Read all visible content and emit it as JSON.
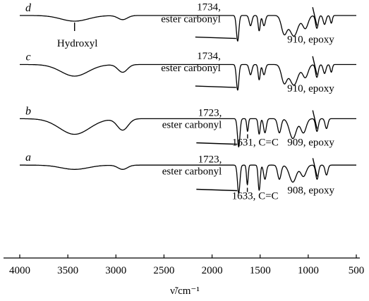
{
  "chart_data": {
    "type": "line",
    "xlabel": "ν̃/cm⁻¹",
    "x_axis": {
      "min": 500,
      "max": 4000,
      "reversed": true,
      "ticks": [
        4000,
        3500,
        3000,
        2500,
        2000,
        1500,
        1000,
        500
      ]
    },
    "y_axis": {
      "visible": false
    },
    "grid": false,
    "series": [
      {
        "name": "d",
        "baseline": 0.94,
        "depth": 0.1,
        "bands": [
          {
            "x": 3430,
            "w": 200,
            "h": 0.22
          },
          {
            "x": 2930,
            "w": 70,
            "h": 0.16
          },
          {
            "x": 1734,
            "w": 18,
            "h": 1.0
          },
          {
            "x": 1600,
            "w": 20,
            "h": 0.4
          },
          {
            "x": 1510,
            "w": 15,
            "h": 0.6
          },
          {
            "x": 1460,
            "w": 20,
            "h": 0.4
          },
          {
            "x": 1250,
            "w": 40,
            "h": 0.7
          },
          {
            "x": 1150,
            "w": 60,
            "h": 0.8
          },
          {
            "x": 1030,
            "w": 40,
            "h": 0.5
          },
          {
            "x": 910,
            "w": 20,
            "h": 0.5
          },
          {
            "x": 830,
            "w": 20,
            "h": 0.35
          },
          {
            "x": 760,
            "w": 15,
            "h": 0.3
          }
        ]
      },
      {
        "name": "c",
        "baseline": 0.75,
        "depth": 0.1,
        "bands": [
          {
            "x": 3430,
            "w": 200,
            "h": 0.45
          },
          {
            "x": 2930,
            "w": 70,
            "h": 0.3
          },
          {
            "x": 1734,
            "w": 18,
            "h": 1.0
          },
          {
            "x": 1600,
            "w": 20,
            "h": 0.4
          },
          {
            "x": 1510,
            "w": 15,
            "h": 0.6
          },
          {
            "x": 1460,
            "w": 20,
            "h": 0.4
          },
          {
            "x": 1250,
            "w": 40,
            "h": 0.7
          },
          {
            "x": 1150,
            "w": 60,
            "h": 0.8
          },
          {
            "x": 1030,
            "w": 40,
            "h": 0.5
          },
          {
            "x": 910,
            "w": 20,
            "h": 0.5
          },
          {
            "x": 830,
            "w": 20,
            "h": 0.35
          },
          {
            "x": 760,
            "w": 15,
            "h": 0.3
          }
        ]
      },
      {
        "name": "b",
        "baseline": 0.54,
        "depth": 0.11,
        "bands": [
          {
            "x": 3430,
            "w": 220,
            "h": 0.55
          },
          {
            "x": 2930,
            "w": 80,
            "h": 0.4
          },
          {
            "x": 1723,
            "w": 18,
            "h": 1.0
          },
          {
            "x": 1631,
            "w": 12,
            "h": 0.45
          },
          {
            "x": 1510,
            "w": 15,
            "h": 0.55
          },
          {
            "x": 1450,
            "w": 20,
            "h": 0.5
          },
          {
            "x": 1300,
            "w": 25,
            "h": 0.5
          },
          {
            "x": 1160,
            "w": 50,
            "h": 0.7
          },
          {
            "x": 1050,
            "w": 40,
            "h": 0.5
          },
          {
            "x": 909,
            "w": 20,
            "h": 0.45
          },
          {
            "x": 810,
            "w": 20,
            "h": 0.35
          }
        ]
      },
      {
        "name": "a",
        "baseline": 0.36,
        "depth": 0.11,
        "bands": [
          {
            "x": 3430,
            "w": 200,
            "h": 0.15
          },
          {
            "x": 2930,
            "w": 70,
            "h": 0.15
          },
          {
            "x": 1723,
            "w": 18,
            "h": 1.0
          },
          {
            "x": 1633,
            "w": 12,
            "h": 0.7
          },
          {
            "x": 1510,
            "w": 15,
            "h": 0.9
          },
          {
            "x": 1450,
            "w": 20,
            "h": 0.5
          },
          {
            "x": 1300,
            "w": 25,
            "h": 0.5
          },
          {
            "x": 1160,
            "w": 50,
            "h": 0.6
          },
          {
            "x": 1050,
            "w": 40,
            "h": 0.4
          },
          {
            "x": 908,
            "w": 20,
            "h": 0.5
          },
          {
            "x": 810,
            "w": 20,
            "h": 0.35
          }
        ]
      }
    ],
    "annotations": [
      {
        "series": "d",
        "at": 3430,
        "lines": [
          "Hydroxyl"
        ]
      },
      {
        "series": "d",
        "at": 1734,
        "lines": [
          "1734,",
          "ester carbonyl"
        ]
      },
      {
        "series": "d",
        "at": 910,
        "lines": [
          "910, epoxy"
        ]
      },
      {
        "series": "c",
        "at": 1734,
        "lines": [
          "1734,",
          "ester carbonyl"
        ]
      },
      {
        "series": "c",
        "at": 910,
        "lines": [
          "910, epoxy"
        ]
      },
      {
        "series": "b",
        "at": 1723,
        "lines": [
          "1723,",
          "ester carbonyl"
        ]
      },
      {
        "series": "b",
        "at": 1631,
        "lines": [
          "1631, C=C"
        ]
      },
      {
        "series": "b",
        "at": 909,
        "lines": [
          "909, epoxy"
        ]
      },
      {
        "series": "a",
        "at": 1723,
        "lines": [
          "1723,",
          "ester carbonyl"
        ]
      },
      {
        "series": "a",
        "at": 1633,
        "lines": [
          "1633, C=C"
        ]
      },
      {
        "series": "a",
        "at": 908,
        "lines": [
          "908, epoxy"
        ]
      }
    ]
  }
}
